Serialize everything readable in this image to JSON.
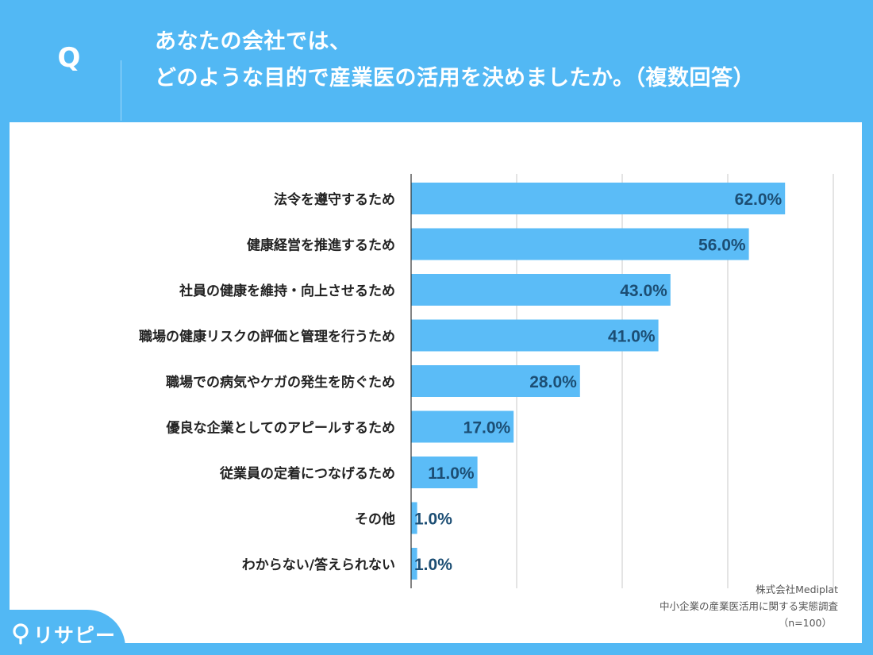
{
  "header": {
    "q_label": "Q",
    "question_line1": "あなたの会社では、",
    "question_line2": "どのような目的で産業医の活用を決めましたか。（複数回答）"
  },
  "source": {
    "company": "株式会社Mediplat",
    "survey": "中小企業の産業医活用に関する実態調査",
    "sample": "（n=100）"
  },
  "logo": {
    "text": "リサピー",
    "icon": "map-pin-icon"
  },
  "colors": {
    "background": "#52b8f4",
    "bar": "#5bbcf7",
    "value_text": "#1c4e74",
    "grid": "#c8c8c8"
  },
  "chart_data": {
    "type": "bar",
    "orientation": "horizontal",
    "categories": [
      "法令を遵守するため",
      "健康経営を推進するため",
      "社員の健康を維持・向上させるため",
      "職場の健康リスクの評価と管理を行うため",
      "職場での病気やケガの発生を防ぐため",
      "優良な企業としてのアピールするため",
      "従業員の定着につなげるため",
      "その他",
      "わからない/答えられない"
    ],
    "values": [
      62.0,
      56.0,
      43.0,
      41.0,
      28.0,
      17.0,
      11.0,
      1.0,
      1.0
    ],
    "value_labels": [
      "62.0%",
      "56.0%",
      "43.0%",
      "41.0%",
      "28.0%",
      "17.0%",
      "11.0%",
      "1.0%",
      "1.0%"
    ],
    "xlim": [
      0,
      70
    ],
    "grid": true,
    "unit": "%"
  }
}
